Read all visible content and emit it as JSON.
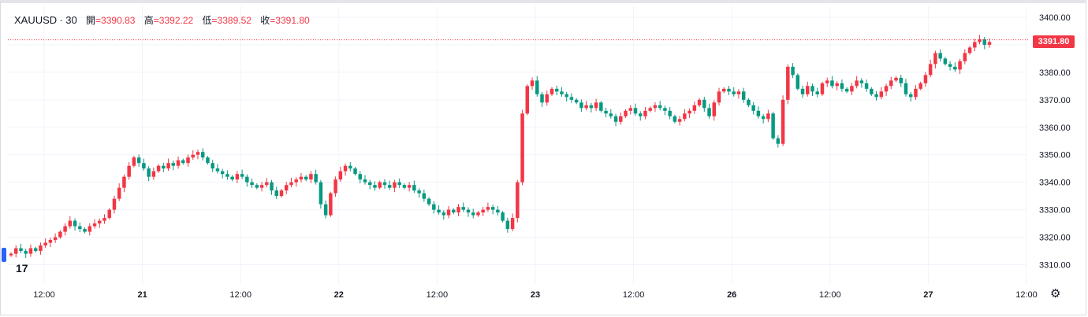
{
  "header": {
    "symbol": "XAUUSD",
    "separator": "·",
    "interval": "30",
    "open_label": "開",
    "open_value": "=3390.83",
    "high_label": "高",
    "high_value": "=3392.22",
    "low_label": "低",
    "low_value": "=3389.52",
    "close_label": "收",
    "close_value": "=3391.80"
  },
  "price_badge": "3391.80",
  "icons": {
    "logo": "tradingview-logo-icon",
    "settings": "gear-icon"
  },
  "colors": {
    "up": "#f23645",
    "down": "#089981",
    "grid": "#f0f3fa"
  },
  "chart_data": {
    "type": "candlestick",
    "ylim": [
      3303,
      3404
    ],
    "y_ticks": [
      3310.0,
      3320.0,
      3330.0,
      3340.0,
      3350.0,
      3360.0,
      3370.0,
      3380.0,
      3390.0,
      3400.0
    ],
    "y_tick_labels": [
      "3310.00",
      "3320.00",
      "3330.00",
      "3340.00",
      "3350.00",
      "3360.00",
      "3370.00",
      "3380.00",
      "3390.00",
      "3400.00"
    ],
    "x_tick_labels": [
      "12:00",
      "21",
      "12:00",
      "22",
      "12:00",
      "23",
      "12:00",
      "26",
      "12:00",
      "27",
      "12:00"
    ],
    "x_tick_bold": [
      false,
      true,
      false,
      true,
      false,
      true,
      false,
      true,
      false,
      true,
      false
    ],
    "last_price": 3391.8,
    "closes": [
      3314,
      3316,
      3315,
      3314,
      3316,
      3315,
      3317,
      3318,
      3319,
      3320,
      3322,
      3324,
      3326,
      3324,
      3323,
      3322,
      3324,
      3325,
      3326,
      3327,
      3330,
      3334,
      3338,
      3342,
      3346,
      3349,
      3347,
      3345,
      3342,
      3344,
      3346,
      3345,
      3347,
      3346,
      3348,
      3347,
      3349,
      3350,
      3351,
      3349,
      3347,
      3345,
      3344,
      3343,
      3342,
      3341,
      3343,
      3342,
      3340,
      3339,
      3338,
      3339,
      3340,
      3337,
      3335,
      3337,
      3339,
      3340,
      3341,
      3342,
      3341,
      3343,
      3340,
      3332,
      3328,
      3336,
      3341,
      3344,
      3346,
      3345,
      3343,
      3341,
      3340,
      3339,
      3338,
      3340,
      3339,
      3338,
      3340,
      3339,
      3338,
      3339,
      3337,
      3336,
      3334,
      3332,
      3330,
      3329,
      3328,
      3330,
      3329,
      3331,
      3330,
      3329,
      3328,
      3329,
      3330,
      3331,
      3330,
      3329,
      3326,
      3323,
      3327,
      3340,
      3365,
      3375,
      3377,
      3372,
      3369,
      3372,
      3374,
      3373,
      3372,
      3371,
      3370,
      3369,
      3367,
      3368,
      3367,
      3369,
      3366,
      3365,
      3364,
      3362,
      3364,
      3366,
      3367,
      3365,
      3364,
      3366,
      3367,
      3368,
      3367,
      3366,
      3364,
      3362,
      3363,
      3365,
      3366,
      3368,
      3370,
      3367,
      3364,
      3369,
      3373,
      3374,
      3373,
      3372,
      3373,
      3370,
      3368,
      3366,
      3364,
      3363,
      3365,
      3356,
      3354,
      3370,
      3382,
      3379,
      3374,
      3372,
      3375,
      3373,
      3372,
      3376,
      3377,
      3375,
      3376,
      3374,
      3373,
      3375,
      3377,
      3376,
      3374,
      3372,
      3371,
      3373,
      3375,
      3377,
      3378,
      3376,
      3372,
      3371,
      3374,
      3376,
      3379,
      3383,
      3387,
      3385,
      3383,
      3382,
      3381,
      3384,
      3387,
      3389,
      3391,
      3392,
      3390,
      3391
    ]
  }
}
